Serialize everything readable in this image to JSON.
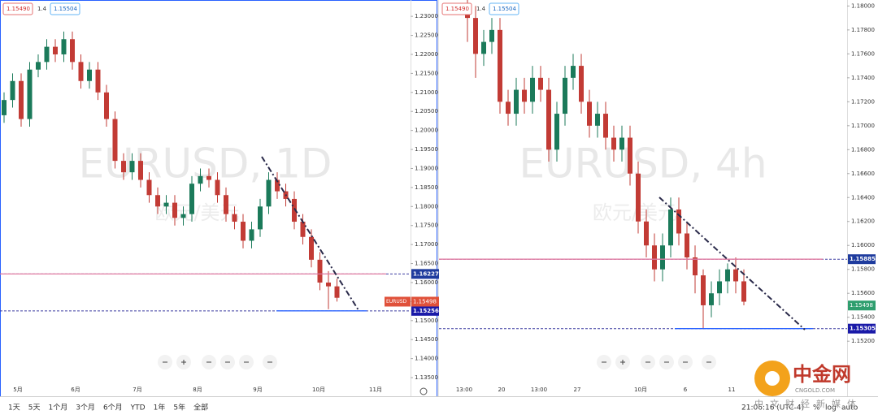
{
  "toolbar": {
    "bid": "1.15490",
    "spread": "1.4",
    "ask": "1.15504"
  },
  "charts": [
    {
      "type": "candlestick",
      "watermark": "EURUSD, 1D",
      "watermark_sub": "欧元/美元",
      "symbol": "EURUSD",
      "ylim": [
        1.1301,
        1.2343
      ],
      "yticks": [
        {
          "value": 1.23,
          "label": "1.23000"
        },
        {
          "value": 1.225,
          "label": "1.22500"
        },
        {
          "value": 1.22,
          "label": "1.22000"
        },
        {
          "value": 1.215,
          "label": "1.21500"
        },
        {
          "value": 1.21,
          "label": "1.21000"
        },
        {
          "value": 1.205,
          "label": "1.20500"
        },
        {
          "value": 1.2,
          "label": "1.20000"
        },
        {
          "value": 1.195,
          "label": "1.19500"
        },
        {
          "value": 1.19,
          "label": "1.19000"
        },
        {
          "value": 1.185,
          "label": "1.18500"
        },
        {
          "value": 1.18,
          "label": "1.18000"
        },
        {
          "value": 1.175,
          "label": "1.17500"
        },
        {
          "value": 1.17,
          "label": "1.17000"
        },
        {
          "value": 1.165,
          "label": "1.16500"
        },
        {
          "value": 1.16,
          "label": "1.16000"
        },
        {
          "value": 1.155,
          "label": "1.15500"
        },
        {
          "value": 1.15,
          "label": "1.15000"
        },
        {
          "value": 1.145,
          "label": "1.14500"
        },
        {
          "value": 1.14,
          "label": "1.14000"
        },
        {
          "value": 1.135,
          "label": "1.13500"
        }
      ],
      "xlabels": [
        "5月",
        "6月",
        "7月",
        "8月",
        "9月",
        "10月",
        "11月"
      ],
      "levels": [
        {
          "value": 1.16227,
          "label": "1.16227"
        },
        {
          "value": 1.15256,
          "label": "1.15256"
        }
      ],
      "current": {
        "value": 1.15498,
        "label": "1.15498"
      },
      "candles": [
        [
          1.204,
          1.21,
          1.202,
          1.208
        ],
        [
          1.208,
          1.215,
          1.206,
          1.213
        ],
        [
          1.213,
          1.215,
          1.201,
          1.203
        ],
        [
          1.203,
          1.218,
          1.201,
          1.216
        ],
        [
          1.216,
          1.22,
          1.214,
          1.218
        ],
        [
          1.218,
          1.224,
          1.216,
          1.222
        ],
        [
          1.222,
          1.224,
          1.218,
          1.22
        ],
        [
          1.22,
          1.226,
          1.218,
          1.224
        ],
        [
          1.224,
          1.226,
          1.216,
          1.218
        ],
        [
          1.218,
          1.22,
          1.211,
          1.213
        ],
        [
          1.213,
          1.218,
          1.211,
          1.216
        ],
        [
          1.216,
          1.218,
          1.208,
          1.21
        ],
        [
          1.21,
          1.212,
          1.201,
          1.203
        ],
        [
          1.203,
          1.205,
          1.19,
          1.192
        ],
        [
          1.192,
          1.194,
          1.187,
          1.189
        ],
        [
          1.189,
          1.194,
          1.187,
          1.192
        ],
        [
          1.192,
          1.194,
          1.185,
          1.187
        ],
        [
          1.187,
          1.189,
          1.181,
          1.183
        ],
        [
          1.183,
          1.185,
          1.178,
          1.18
        ],
        [
          1.18,
          1.183,
          1.178,
          1.181
        ],
        [
          1.181,
          1.183,
          1.175,
          1.177
        ],
        [
          1.177,
          1.18,
          1.175,
          1.178
        ],
        [
          1.178,
          1.188,
          1.176,
          1.186
        ],
        [
          1.186,
          1.19,
          1.184,
          1.188
        ],
        [
          1.188,
          1.19,
          1.185,
          1.187
        ],
        [
          1.187,
          1.189,
          1.181,
          1.183
        ],
        [
          1.183,
          1.185,
          1.176,
          1.178
        ],
        [
          1.178,
          1.18,
          1.174,
          1.176
        ],
        [
          1.176,
          1.178,
          1.169,
          1.171
        ],
        [
          1.171,
          1.176,
          1.169,
          1.174
        ],
        [
          1.174,
          1.182,
          1.172,
          1.18
        ],
        [
          1.18,
          1.189,
          1.178,
          1.187
        ],
        [
          1.187,
          1.189,
          1.182,
          1.184
        ],
        [
          1.184,
          1.186,
          1.18,
          1.182
        ],
        [
          1.182,
          1.184,
          1.174,
          1.176
        ],
        [
          1.176,
          1.178,
          1.17,
          1.172
        ],
        [
          1.172,
          1.174,
          1.164,
          1.166
        ],
        [
          1.166,
          1.168,
          1.158,
          1.16
        ],
        [
          1.16,
          1.163,
          1.153,
          1.159
        ],
        [
          1.159,
          1.161,
          1.155,
          1.156
        ]
      ]
    },
    {
      "type": "candlestick",
      "watermark": "EURUSD, 4h",
      "watermark_sub": "欧元/美元",
      "symbol": "EURUSD",
      "ylim": [
        1.1474,
        1.1805
      ],
      "yticks": [
        {
          "value": 1.18,
          "label": "1.18000"
        },
        {
          "value": 1.178,
          "label": "1.17800"
        },
        {
          "value": 1.176,
          "label": "1.17600"
        },
        {
          "value": 1.174,
          "label": "1.17400"
        },
        {
          "value": 1.172,
          "label": "1.17200"
        },
        {
          "value": 1.17,
          "label": "1.17000"
        },
        {
          "value": 1.168,
          "label": "1.16800"
        },
        {
          "value": 1.166,
          "label": "1.16600"
        },
        {
          "value": 1.164,
          "label": "1.16400"
        },
        {
          "value": 1.162,
          "label": "1.16200"
        },
        {
          "value": 1.16,
          "label": "1.16000"
        },
        {
          "value": 1.158,
          "label": "1.15800"
        },
        {
          "value": 1.156,
          "label": "1.15600"
        },
        {
          "value": 1.154,
          "label": "1.15400"
        },
        {
          "value": 1.152,
          "label": "1.15200"
        }
      ],
      "xlabels": [
        "13:00",
        "20",
        "13:00",
        "27",
        "10月",
        "6",
        "11"
      ],
      "levels": [
        {
          "value": 1.15885,
          "label": "1.15885"
        },
        {
          "value": 1.15305,
          "label": "1.15305"
        }
      ],
      "current": {
        "value": 1.15498,
        "label": "1.15498"
      },
      "candles": [
        [
          1.18,
          1.181,
          1.177,
          1.179
        ],
        [
          1.179,
          1.18,
          1.174,
          1.176
        ],
        [
          1.176,
          1.178,
          1.175,
          1.177
        ],
        [
          1.177,
          1.179,
          1.176,
          1.178
        ],
        [
          1.178,
          1.179,
          1.171,
          1.172
        ],
        [
          1.172,
          1.173,
          1.17,
          1.171
        ],
        [
          1.171,
          1.174,
          1.17,
          1.173
        ],
        [
          1.173,
          1.174,
          1.171,
          1.172
        ],
        [
          1.172,
          1.175,
          1.171,
          1.174
        ],
        [
          1.174,
          1.175,
          1.172,
          1.173
        ],
        [
          1.173,
          1.174,
          1.167,
          1.168
        ],
        [
          1.168,
          1.172,
          1.167,
          1.171
        ],
        [
          1.171,
          1.175,
          1.17,
          1.174
        ],
        [
          1.174,
          1.176,
          1.173,
          1.175
        ],
        [
          1.175,
          1.176,
          1.171,
          1.172
        ],
        [
          1.172,
          1.173,
          1.169,
          1.17
        ],
        [
          1.17,
          1.172,
          1.169,
          1.171
        ],
        [
          1.171,
          1.172,
          1.168,
          1.169
        ],
        [
          1.169,
          1.17,
          1.167,
          1.168
        ],
        [
          1.168,
          1.17,
          1.167,
          1.169
        ],
        [
          1.169,
          1.17,
          1.165,
          1.166
        ],
        [
          1.166,
          1.167,
          1.161,
          1.162
        ],
        [
          1.162,
          1.163,
          1.159,
          1.16
        ],
        [
          1.16,
          1.161,
          1.157,
          1.158
        ],
        [
          1.158,
          1.161,
          1.157,
          1.16
        ],
        [
          1.16,
          1.164,
          1.159,
          1.163
        ],
        [
          1.163,
          1.164,
          1.16,
          1.161
        ],
        [
          1.161,
          1.162,
          1.158,
          1.159
        ],
        [
          1.159,
          1.16,
          1.156,
          1.1575
        ],
        [
          1.1575,
          1.158,
          1.153,
          1.155
        ],
        [
          1.155,
          1.157,
          1.154,
          1.156
        ],
        [
          1.156,
          1.158,
          1.155,
          1.157
        ],
        [
          1.157,
          1.1585,
          1.156,
          1.158
        ],
        [
          1.158,
          1.159,
          1.156,
          1.157
        ],
        [
          1.157,
          1.158,
          1.155,
          1.1553
        ]
      ]
    }
  ],
  "bottom_bar": {
    "ranges": [
      "1天",
      "5天",
      "1个月",
      "3个月",
      "6个月",
      "YTD",
      "1年",
      "5年",
      "全部"
    ],
    "time": "21:06:16 (UTC-4)",
    "options": [
      "%",
      "log",
      "auto"
    ]
  },
  "logo": {
    "name": "中金网",
    "domain": "CNGOLD.COM",
    "slogan": "中文财经新媒体"
  }
}
